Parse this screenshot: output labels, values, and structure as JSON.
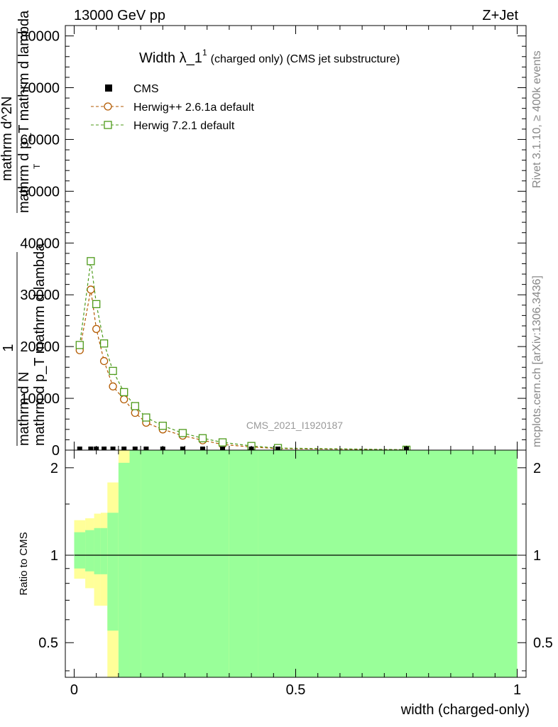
{
  "header": {
    "left": "13000 GeV pp",
    "right": "Z+Jet"
  },
  "side_labels": {
    "rivet": "Rivet 3.1.10, ≥ 400k events",
    "mcplots": "mcplots.cern.ch [arXiv:1306.3436]"
  },
  "chart_data": {
    "type": "line",
    "title_main": "Width λ_1",
    "title_sup": "1",
    "title_sub": "(charged only) (CMS jet substructure)",
    "watermark": "CMS_2021_I1920187",
    "ylabel_lines": [
      "1",
      "mathrm d N",
      "mathrm d p_T mathrm d lambda",
      "mathrm d^2N",
      "mathrm d p_T mathrm d lambda"
    ],
    "ylabel_sub_T": "T",
    "xlabel": "width (charged-only)",
    "ratio_ylabel": "Ratio to CMS",
    "xlim": [
      -0.02,
      1.02
    ],
    "ylim": [
      0,
      82000
    ],
    "ratio_ylim": [
      0.38,
      2.3
    ],
    "main_y_ticks": [
      0,
      10000,
      20000,
      30000,
      40000,
      50000,
      60000,
      70000,
      80000
    ],
    "main_y_tick_labels": [
      "0",
      "10000",
      "20000",
      "30000",
      "40000",
      "50000",
      "60000",
      "70000",
      "80000"
    ],
    "ratio_y_ticks": [
      0.5,
      1,
      2
    ],
    "ratio_y_tick_labels": [
      "0.5",
      "1",
      "2"
    ],
    "x_ticks": [
      0,
      0.5,
      1
    ],
    "x_tick_labels": [
      "0",
      "0.5",
      "1"
    ],
    "legend": [
      {
        "name": "CMS",
        "color": "#000000",
        "marker": "filled-square"
      },
      {
        "name": "Herwig++ 2.6.1a default",
        "color": "#b35a00",
        "marker": "open-circle"
      },
      {
        "name": "Herwig 7.2.1 default",
        "color": "#4d9a1a",
        "marker": "open-square"
      }
    ],
    "x": [
      0.0125,
      0.0375,
      0.05,
      0.0675,
      0.0875,
      0.1125,
      0.1375,
      0.1625,
      0.2,
      0.245,
      0.29,
      0.335,
      0.4,
      0.46,
      0.75
    ],
    "series": [
      {
        "name": "CMS",
        "values": [
          0,
          0,
          0,
          0,
          0,
          0,
          0,
          0,
          0,
          0,
          0,
          0,
          0,
          0,
          0
        ]
      },
      {
        "name": "Herwig++ 2.6.1a default",
        "values": [
          19300,
          31000,
          23400,
          17200,
          12300,
          9800,
          7200,
          5300,
          4000,
          2800,
          1900,
          1100,
          600,
          300,
          60
        ]
      },
      {
        "name": "Herwig 7.2.1 default",
        "values": [
          20300,
          36500,
          28200,
          20600,
          15300,
          11200,
          8500,
          6300,
          4700,
          3300,
          2300,
          1500,
          800,
          400,
          80
        ]
      }
    ],
    "ratio_bands": [
      {
        "x0": 0.0,
        "x1": 0.025,
        "yellow": [
          0.83,
          1.32
        ],
        "green": [
          0.9,
          1.2
        ]
      },
      {
        "x0": 0.025,
        "x1": 0.045,
        "yellow": [
          0.77,
          1.34
        ],
        "green": [
          0.88,
          1.22
        ]
      },
      {
        "x0": 0.045,
        "x1": 0.06,
        "yellow": [
          0.67,
          1.39
        ],
        "green": [
          0.86,
          1.24
        ]
      },
      {
        "x0": 0.06,
        "x1": 0.075,
        "yellow": [
          0.67,
          1.4
        ],
        "green": [
          0.86,
          1.24
        ]
      },
      {
        "x0": 0.075,
        "x1": 0.1,
        "yellow": [
          0.38,
          1.78
        ],
        "green": [
          0.55,
          1.4
        ]
      },
      {
        "x0": 0.1,
        "x1": 0.125,
        "yellow": [
          0.38,
          2.3
        ],
        "green": [
          0.38,
          2.08
        ]
      },
      {
        "x0": 0.125,
        "x1": 0.15,
        "yellow": [
          0.38,
          2.3
        ],
        "green": [
          0.38,
          2.3
        ]
      },
      {
        "x0": 0.15,
        "x1": 0.35,
        "yellow": [
          0.38,
          2.3
        ],
        "green": [
          0.38,
          2.3
        ]
      },
      {
        "x0": 0.35,
        "x1": 0.415,
        "yellow": [
          0.38,
          2.3
        ],
        "green": [
          0.38,
          2.3
        ]
      },
      {
        "x0": 0.415,
        "x1": 0.5,
        "yellow": [
          0.38,
          2.3
        ],
        "green": [
          0.38,
          2.3
        ]
      },
      {
        "x0": 0.5,
        "x1": 1.0,
        "yellow": [
          0.38,
          2.3
        ],
        "green": [
          0.38,
          2.3
        ]
      }
    ],
    "colors": {
      "green": "#99ff99",
      "yellow": "#ffff99",
      "herwig_pp": "#b35a00",
      "herwig7": "#4d9a1a",
      "data": "#000000"
    }
  }
}
